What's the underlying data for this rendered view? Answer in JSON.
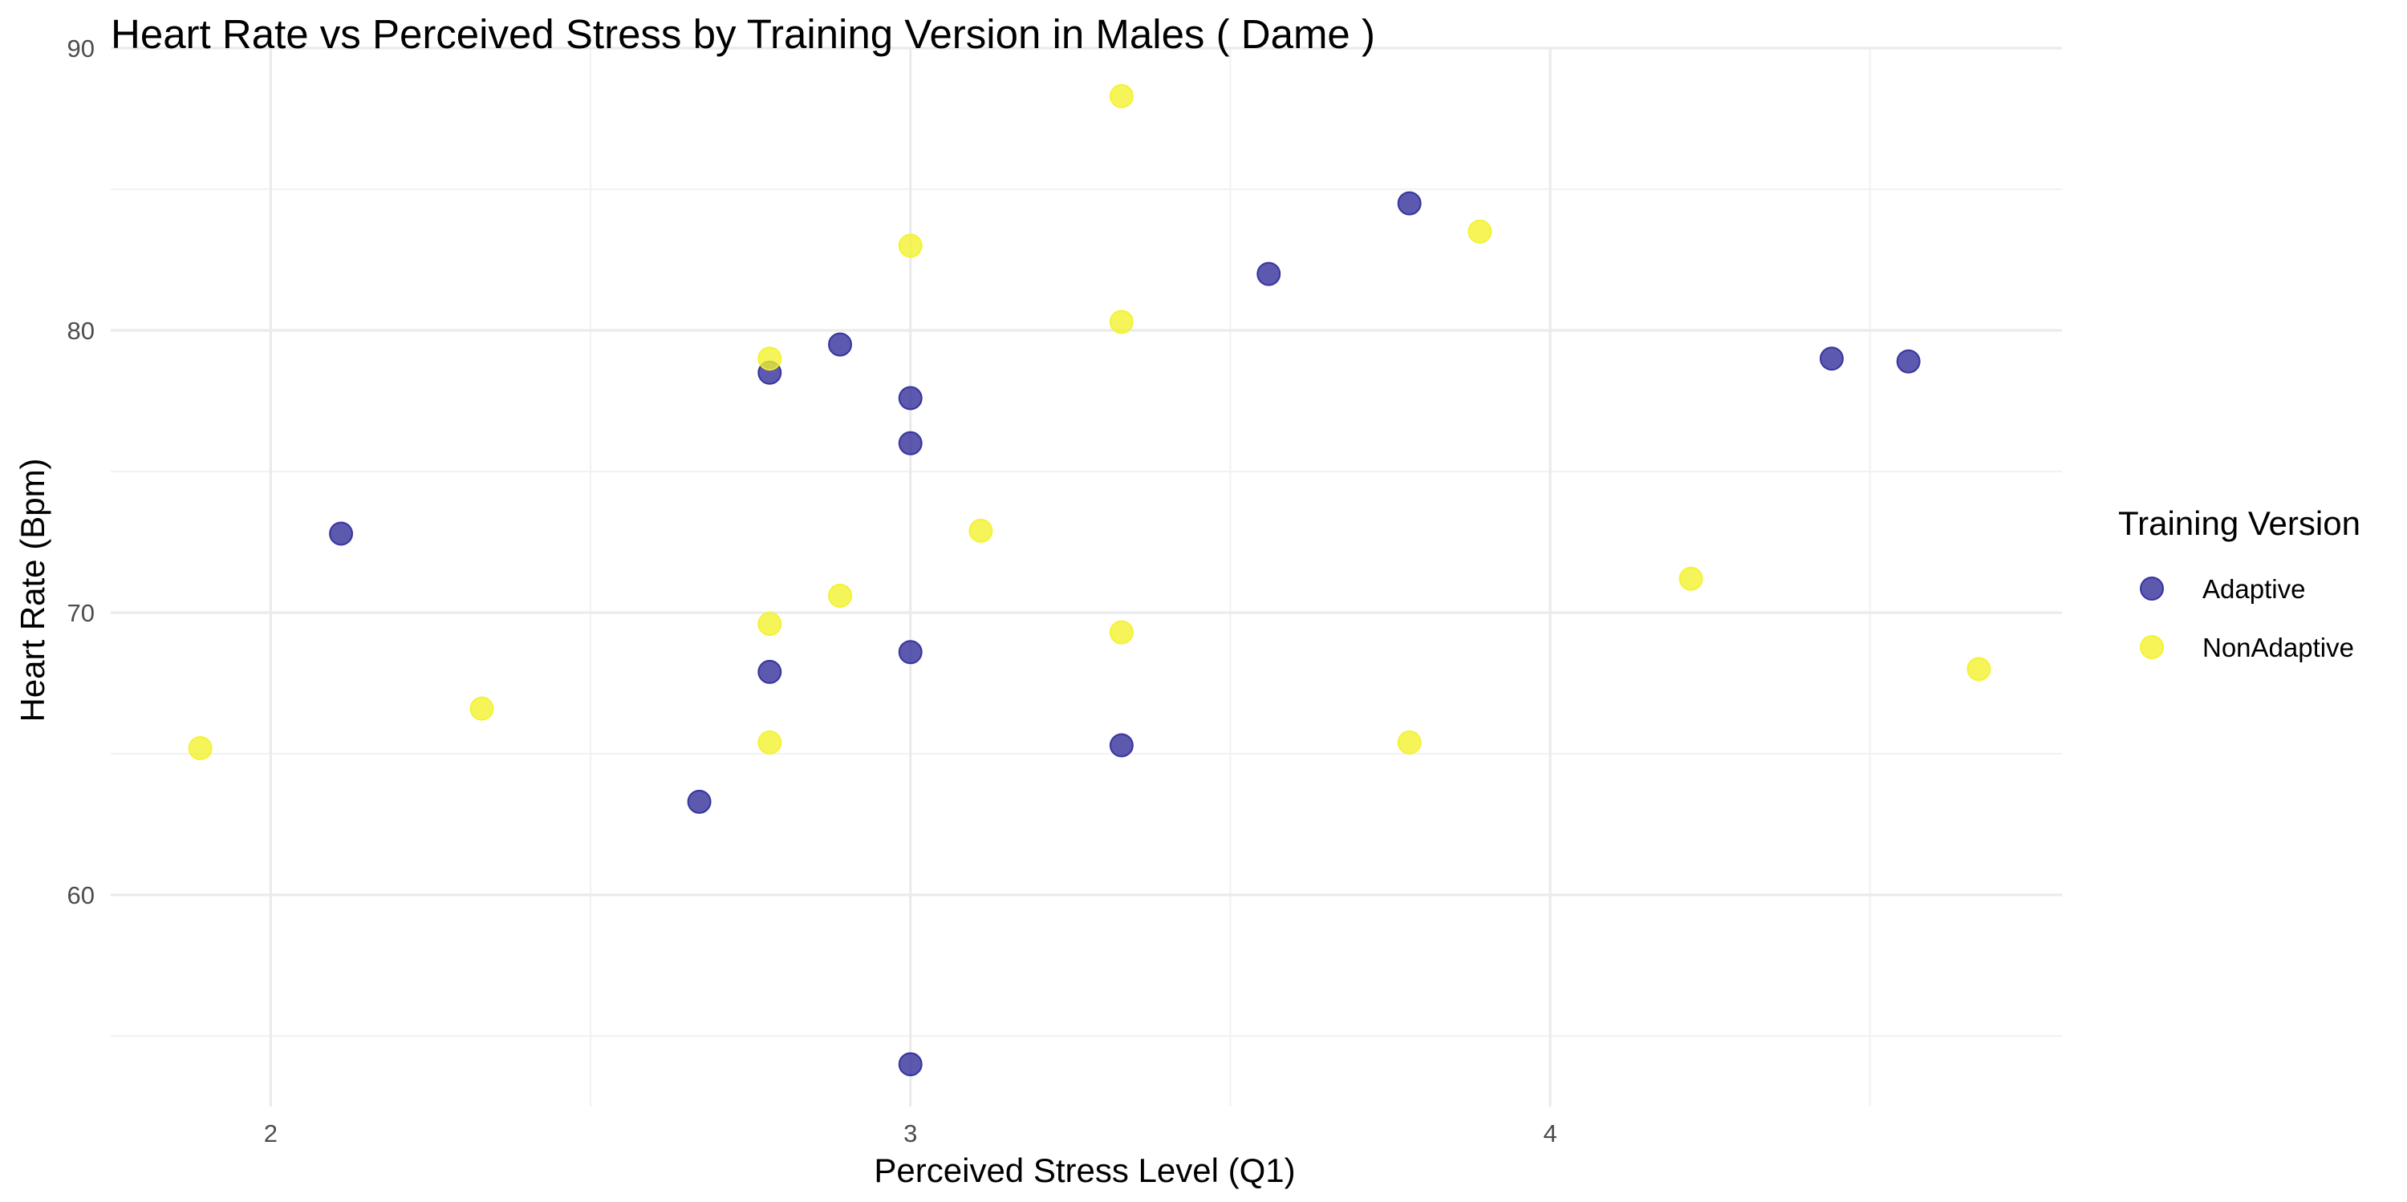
{
  "chart_data": {
    "type": "scatter",
    "title": "Heart Rate vs Perceived Stress by Training Version in Males ( Dame )",
    "xlabel": "Perceived Stress Level (Q1)",
    "ylabel": "Heart Rate (Bpm)",
    "xlim": [
      1.75,
      4.8
    ],
    "ylim": [
      52.5,
      90
    ],
    "x_ticks": [
      2,
      3,
      4
    ],
    "y_ticks": [
      60,
      70,
      80,
      90
    ],
    "x_tick_labels": [
      "2",
      "3",
      "4"
    ],
    "y_tick_labels": [
      "60",
      "70",
      "80",
      "90"
    ],
    "grid": true,
    "legend": {
      "title": "Training Version",
      "position": "right"
    },
    "series": [
      {
        "name": "Adaptive",
        "color": "#2e2a99",
        "points": [
          {
            "x": 2.11,
            "y": 72.8
          },
          {
            "x": 2.67,
            "y": 63.3
          },
          {
            "x": 2.78,
            "y": 78.5
          },
          {
            "x": 2.78,
            "y": 67.9
          },
          {
            "x": 2.89,
            "y": 79.5
          },
          {
            "x": 3.0,
            "y": 77.6
          },
          {
            "x": 3.0,
            "y": 76.0
          },
          {
            "x": 3.0,
            "y": 68.6
          },
          {
            "x": 3.0,
            "y": 54.0
          },
          {
            "x": 3.33,
            "y": 65.3
          },
          {
            "x": 3.56,
            "y": 82.0
          },
          {
            "x": 3.78,
            "y": 84.5
          },
          {
            "x": 4.44,
            "y": 79.0
          },
          {
            "x": 4.56,
            "y": 78.9
          }
        ]
      },
      {
        "name": "NonAdaptive",
        "color": "#f2f22a",
        "points": [
          {
            "x": 1.89,
            "y": 65.2
          },
          {
            "x": 2.33,
            "y": 66.6
          },
          {
            "x": 2.78,
            "y": 79.0
          },
          {
            "x": 2.78,
            "y": 69.6
          },
          {
            "x": 2.78,
            "y": 65.4
          },
          {
            "x": 2.89,
            "y": 70.6
          },
          {
            "x": 3.0,
            "y": 83.0
          },
          {
            "x": 3.11,
            "y": 72.9
          },
          {
            "x": 3.33,
            "y": 88.3
          },
          {
            "x": 3.33,
            "y": 80.3
          },
          {
            "x": 3.33,
            "y": 69.3
          },
          {
            "x": 3.78,
            "y": 65.4
          },
          {
            "x": 3.89,
            "y": 83.5
          },
          {
            "x": 4.22,
            "y": 71.2
          },
          {
            "x": 4.67,
            "y": 68.0
          }
        ]
      }
    ]
  }
}
